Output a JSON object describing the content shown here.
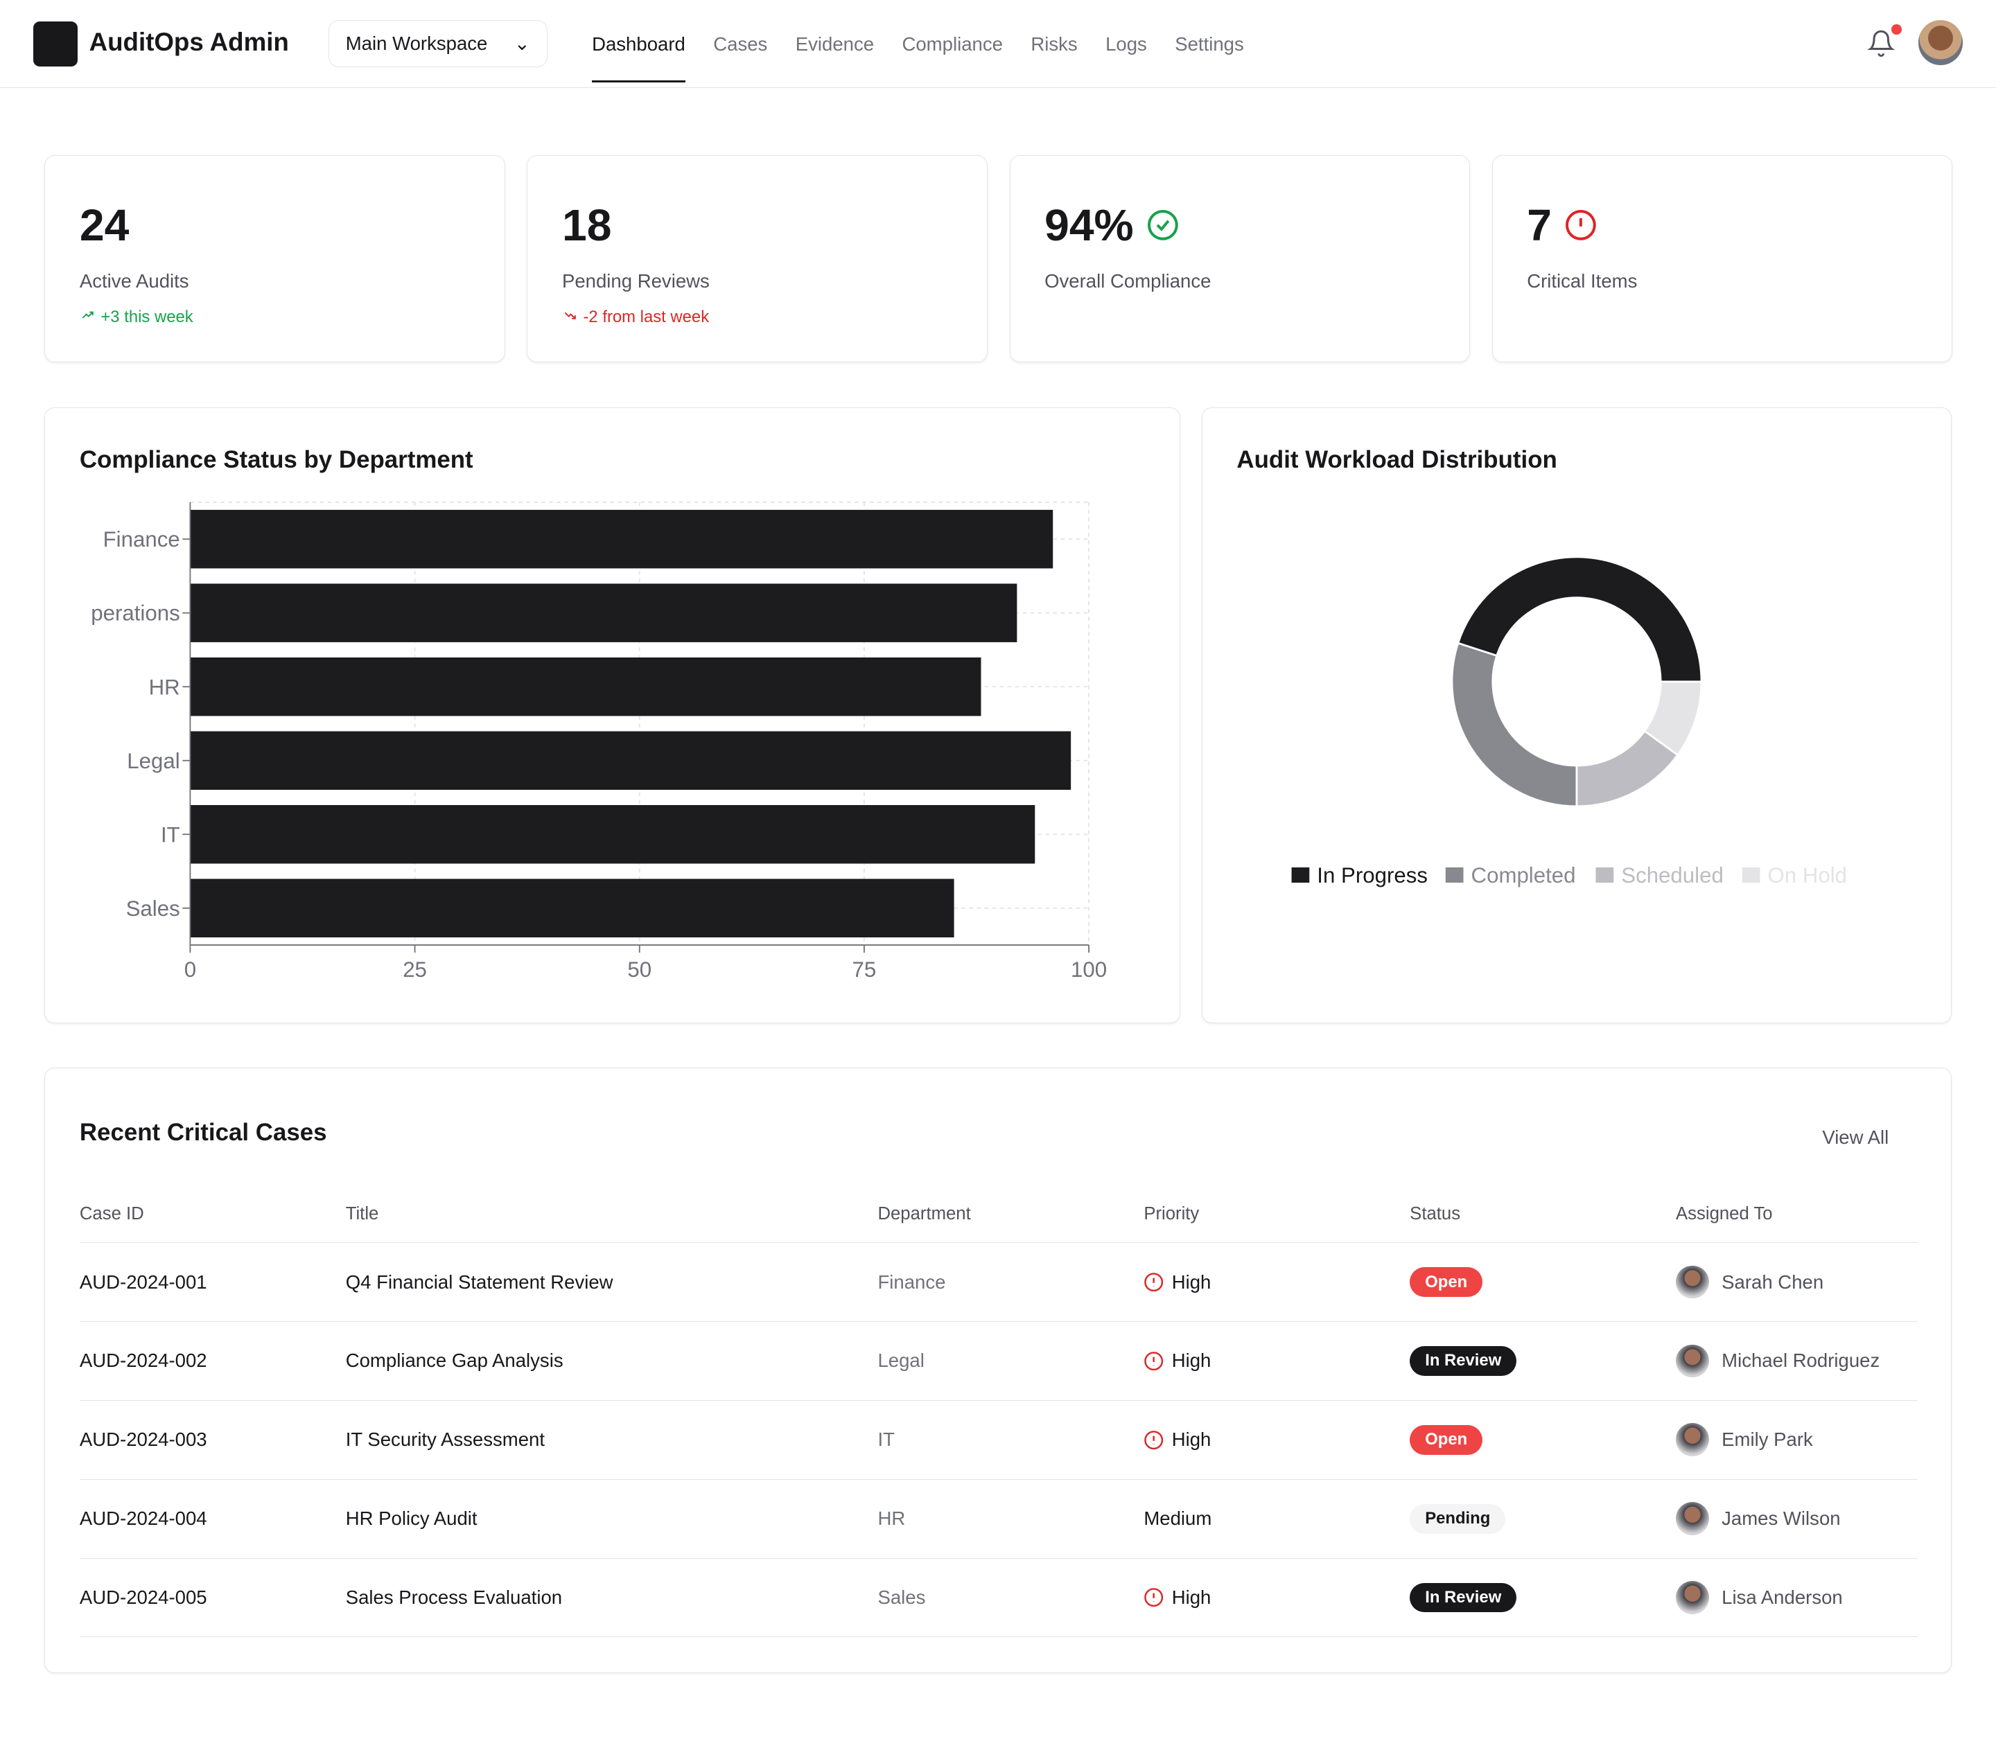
{
  "header": {
    "brand": "AuditOps Admin",
    "workspace": "Main Workspace",
    "nav": [
      "Dashboard",
      "Cases",
      "Evidence",
      "Compliance",
      "Risks",
      "Logs",
      "Settings"
    ],
    "active_nav": "Dashboard"
  },
  "stats": [
    {
      "value": "24",
      "label": "Active Audits",
      "trend": "+3 this week",
      "trend_dir": "up",
      "trend_color": "#16a34a"
    },
    {
      "value": "18",
      "label": "Pending Reviews",
      "trend": "-2 from last week",
      "trend_dir": "down",
      "trend_color": "#dc2626"
    },
    {
      "value": "94%",
      "label": "Overall Compliance",
      "icon": "check-circle-icon",
      "icon_color": "#16a34a"
    },
    {
      "value": "7",
      "label": "Critical Items",
      "icon": "alert-circle-icon",
      "icon_color": "#dc2626"
    }
  ],
  "chart_data": [
    {
      "type": "bar",
      "orientation": "horizontal",
      "title": "Compliance Status by Department",
      "categories": [
        "Finance",
        "perations",
        "HR",
        "Legal",
        "IT",
        "Sales"
      ],
      "values": [
        96,
        92,
        88,
        98,
        94,
        85
      ],
      "xlim": [
        0,
        100
      ],
      "xticks": [
        "0",
        "25",
        "50",
        "75",
        "100"
      ],
      "grid": true,
      "color": "#1c1c1e"
    },
    {
      "type": "pie",
      "donut": true,
      "title": "Audit Workload Distribution",
      "categories": [
        "In Progress",
        "Completed",
        "Scheduled",
        "On Hold"
      ],
      "values": [
        45,
        30,
        15,
        10
      ],
      "colors": [
        "#1c1c1e",
        "#88888f",
        "#bcbcc2",
        "#e4e4e6"
      ],
      "legend": "bottom"
    }
  ],
  "cases": {
    "title": "Recent Critical Cases",
    "view_all": "View All",
    "columns": [
      "Case ID",
      "Title",
      "Department",
      "Priority",
      "Status",
      "Assigned To"
    ],
    "rows": [
      {
        "id": "AUD-2024-001",
        "title": "Q4 Financial Statement Review",
        "dept": "Finance",
        "priority": "High",
        "status": "Open",
        "assignee": "Sarah Chen"
      },
      {
        "id": "AUD-2024-002",
        "title": "Compliance Gap Analysis",
        "dept": "Legal",
        "priority": "High",
        "status": "In Review",
        "assignee": "Michael Rodriguez"
      },
      {
        "id": "AUD-2024-003",
        "title": "IT Security Assessment",
        "dept": "IT",
        "priority": "High",
        "status": "Open",
        "assignee": "Emily Park"
      },
      {
        "id": "AUD-2024-004",
        "title": "HR Policy Audit",
        "dept": "HR",
        "priority": "Medium",
        "status": "Pending",
        "assignee": "James Wilson"
      },
      {
        "id": "AUD-2024-005",
        "title": "Sales Process Evaluation",
        "dept": "Sales",
        "priority": "High",
        "status": "In Review",
        "assignee": "Lisa Anderson"
      }
    ]
  }
}
